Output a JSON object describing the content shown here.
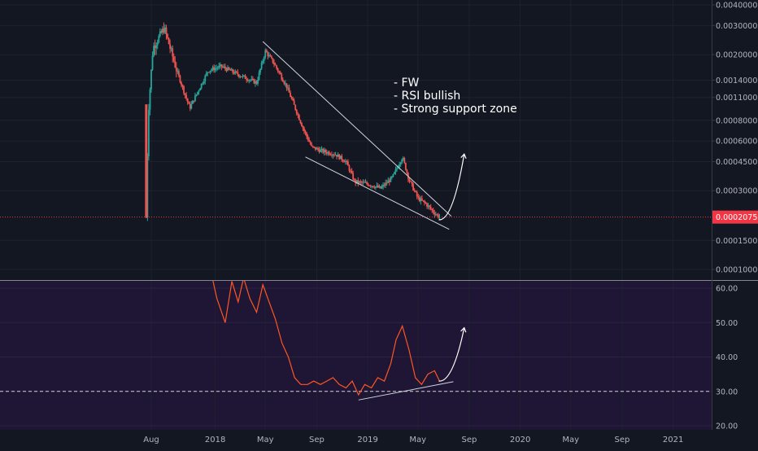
{
  "theme": {
    "background": "#131722",
    "grid": "#1e2230",
    "axis_text": "#b2b5be",
    "candle_up": "#26a69a",
    "candle_down": "#ef5350",
    "price_line": "#f23645",
    "rsi_band": "#1f1535",
    "rsi_line": "#ff5722",
    "annotation": "#ffffff",
    "divider": "#d1d4dc"
  },
  "annotation_text": [
    "- FW",
    "- RSI bullish",
    "- Strong support zone"
  ],
  "chart_data": [
    {
      "type": "candlestick",
      "title": "",
      "scale": "log",
      "ylim": [
        8e-05,
        0.0042
      ],
      "y_ticks": [
        "0.00400000",
        "0.00300000",
        "0.00200000",
        "0.00140000",
        "0.00110000",
        "0.00080000",
        "0.00060000",
        "0.00045000",
        "0.00030000",
        "0.00015000",
        "0.00010000"
      ],
      "last_price_label": "0.00020755",
      "last_price": 0.00020755,
      "x_ticks": [
        "Aug",
        "2018",
        "May",
        "Sep",
        "2019",
        "May",
        "Sep",
        "2020",
        "May",
        "Sep",
        "2021"
      ],
      "trend": [
        [
          "2017-07-20",
          0.000207
        ],
        [
          "2017-07-25",
          0.0009
        ],
        [
          "2017-08-05",
          0.0022
        ],
        [
          "2017-09-01",
          0.0029
        ],
        [
          "2017-10-01",
          0.0016
        ],
        [
          "2017-11-01",
          0.00095
        ],
        [
          "2017-12-15",
          0.0016
        ],
        [
          "2018-01-15",
          0.0017
        ],
        [
          "2018-03-01",
          0.0015
        ],
        [
          "2018-04-10",
          0.00135
        ],
        [
          "2018-05-01",
          0.0021
        ],
        [
          "2018-05-20",
          0.0018
        ],
        [
          "2018-06-20",
          0.0013
        ],
        [
          "2018-08-01",
          0.0007
        ],
        [
          "2018-08-20",
          0.00055
        ],
        [
          "2018-09-15",
          0.00052
        ],
        [
          "2018-10-15",
          0.0005
        ],
        [
          "2018-11-10",
          0.00045
        ],
        [
          "2018-12-01",
          0.00034
        ],
        [
          "2019-01-01",
          0.00033
        ],
        [
          "2019-02-01",
          0.00031
        ],
        [
          "2019-03-01",
          0.00036
        ],
        [
          "2019-03-25",
          0.00048
        ],
        [
          "2019-04-10",
          0.00035
        ],
        [
          "2019-05-01",
          0.00027
        ],
        [
          "2019-05-20",
          0.00025
        ],
        [
          "2019-06-10",
          0.00022
        ],
        [
          "2019-06-22",
          0.00020755
        ]
      ],
      "lines": [
        {
          "from": [
            "2018-04-25",
            0.0024
          ],
          "to": [
            "2019-07-20",
            0.00021
          ]
        },
        {
          "from": [
            "2018-08-05",
            0.00048
          ],
          "to": [
            "2019-07-15",
            0.000175
          ]
        }
      ],
      "forecast_arrow": {
        "from": [
          "2019-06-20",
          0.0002
        ],
        "to": [
          "2019-08-20",
          0.0005
        ]
      }
    },
    {
      "type": "line",
      "name": "RSI",
      "ylim": [
        18,
        62
      ],
      "y_ticks": [
        "60.00",
        "50.00",
        "40.00",
        "30.00",
        "20.00"
      ],
      "reference_line": 30,
      "x": [
        "2017-12-25",
        "2018-01-05",
        "2018-01-25",
        "2018-02-10",
        "2018-02-25",
        "2018-03-10",
        "2018-03-25",
        "2018-04-10",
        "2018-04-25",
        "2018-05-10",
        "2018-05-25",
        "2018-06-10",
        "2018-06-25",
        "2018-07-10",
        "2018-07-25",
        "2018-08-10",
        "2018-08-25",
        "2018-09-10",
        "2018-09-25",
        "2018-10-10",
        "2018-10-25",
        "2018-11-10",
        "2018-11-25",
        "2018-12-10",
        "2018-12-25",
        "2019-01-10",
        "2019-01-25",
        "2019-02-10",
        "2019-02-25",
        "2019-03-10",
        "2019-03-25",
        "2019-04-10",
        "2019-04-25",
        "2019-05-10",
        "2019-05-25",
        "2019-06-10",
        "2019-06-22"
      ],
      "y": [
        63,
        57,
        50,
        62,
        56,
        63,
        57,
        53,
        61,
        56,
        51,
        44,
        40,
        34,
        32,
        32,
        33,
        32,
        33,
        34,
        32,
        31,
        33,
        29,
        32,
        31,
        34,
        33,
        38,
        45,
        49,
        42,
        34,
        32,
        35,
        36,
        33
      ],
      "support_line": {
        "from": [
          "2018-12-10",
          27.5
        ],
        "to": [
          "2019-07-25",
          32.8
        ]
      },
      "forecast_arrow": {
        "from": [
          "2019-06-20",
          33
        ],
        "to": [
          "2019-08-20",
          48.5
        ]
      }
    }
  ]
}
